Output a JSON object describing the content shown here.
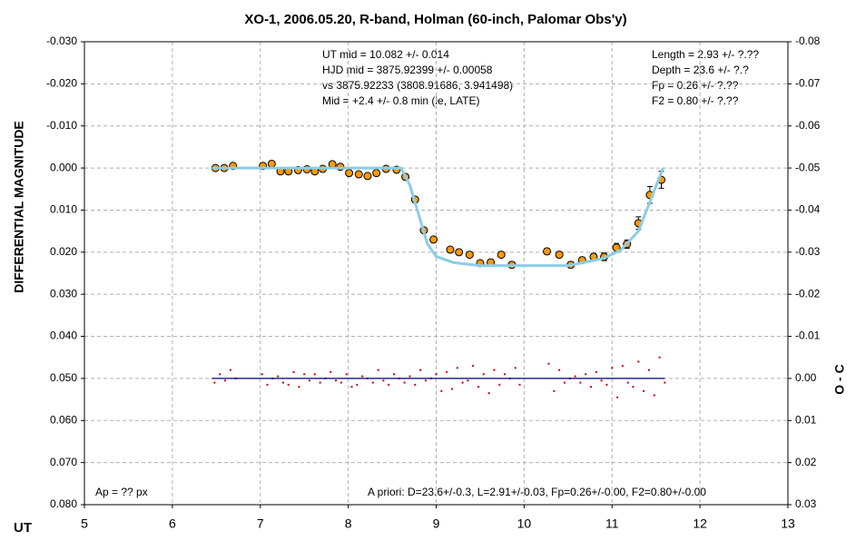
{
  "chart_data": {
    "type": "scatter",
    "title": "XO-1, 2006.05.20, R-band, Holman (60-inch, Palomar Obs'y)",
    "xlabel": "UT",
    "ylabel": "DIFFERENTIAL MAGNITUDE",
    "y2label": "O - C",
    "annotations": [
      "UT mid = 10.082 +/- 0.014",
      "HJD mid = 3875.92399 +/- 0.00058",
      "vs 3875.92233  (3808.91686, 3.941498)",
      "Mid = +2.4 +/- 0.8 min (ie, LATE)",
      "Length = 2.93 +/- ?.??",
      "Depth = 23.6 +/- ?.?",
      "Fp = 0.26 +/- ?.??",
      "F2 = 0.80 +/- ?.??",
      "Ap = ?? px",
      "A priori: D=23.6+/-0.3, L=2.91+/-0.03, Fp=0.26+/-0.00, F2=0.80+/-0.00"
    ],
    "xlim": [
      5,
      13
    ],
    "xticks": [
      5,
      6,
      7,
      8,
      9,
      10,
      11,
      12,
      13
    ],
    "ylim": [
      -0.03,
      0.08
    ],
    "y_inverted": true,
    "yticks": [
      {
        "value": -0.03,
        "label": "-0.030"
      },
      {
        "value": -0.02,
        "label": "-0.020"
      },
      {
        "value": -0.01,
        "label": "-0.010"
      },
      {
        "value": 0,
        "label": "0.000"
      },
      {
        "value": 0.01,
        "label": "0.010"
      },
      {
        "value": 0.02,
        "label": "0.020"
      },
      {
        "value": 0.03,
        "label": "0.030"
      },
      {
        "value": 0.04,
        "label": "0.040"
      },
      {
        "value": 0.05,
        "label": "0.050"
      },
      {
        "value": 0.06,
        "label": "0.060"
      },
      {
        "value": 0.07,
        "label": "0.070"
      },
      {
        "value": 0.08,
        "label": "0.080"
      }
    ],
    "y2lim": [
      -0.08,
      0.03
    ],
    "y2ticks": [
      {
        "value": -0.08,
        "label": "-0.08"
      },
      {
        "value": -0.07,
        "label": "-0.07"
      },
      {
        "value": -0.06,
        "label": "-0.06"
      },
      {
        "value": -0.05,
        "label": "-0.05"
      },
      {
        "value": -0.04,
        "label": "-0.04"
      },
      {
        "value": -0.03,
        "label": "-0.03"
      },
      {
        "value": -0.02,
        "label": "-0.02"
      },
      {
        "value": -0.01,
        "label": "-0.01"
      },
      {
        "value": 0,
        "label": "0.00"
      },
      {
        "value": 0.01,
        "label": "0.01"
      },
      {
        "value": 0.02,
        "label": "0.02"
      },
      {
        "value": 0.03,
        "label": "0.03"
      }
    ],
    "grid": true,
    "series": [
      {
        "mark": "errorbar",
        "color": "#ff9900",
        "x": [
          6.49,
          6.59,
          6.69,
          7.03,
          7.13,
          7.23,
          7.32,
          7.43,
          7.53,
          7.62,
          7.71,
          7.82,
          7.91,
          8.01,
          8.12,
          8.22,
          8.32,
          8.43,
          8.55,
          8.65,
          8.76,
          8.86,
          8.97,
          9.16,
          9.26,
          9.38,
          9.5,
          9.62,
          9.74,
          9.86,
          10.26,
          10.4,
          10.53,
          10.66,
          10.79,
          10.91,
          11.05,
          11.17,
          11.3,
          11.43,
          11.56
        ],
        "values": [
          0,
          0,
          -0.0005,
          -0.0005,
          -0.001,
          0.0008,
          0.0008,
          0.0005,
          0.0003,
          0.0008,
          0.0002,
          -0.0009,
          -0.0003,
          0.0012,
          0.0015,
          0.0019,
          0.0012,
          0.0002,
          0.0004,
          0.0021,
          0.0075,
          0.0148,
          0.017,
          0.0194,
          0.02,
          0.0206,
          0.0226,
          0.0224,
          0.0206,
          0.023,
          0.0198,
          0.0206,
          0.023,
          0.0219,
          0.0211,
          0.0211,
          0.0189,
          0.0181,
          0.0131,
          0.0064,
          0.0028
        ],
        "errors": [
          0.0004,
          0.0004,
          0.0004,
          0.0004,
          0.0004,
          0.0005,
          0.0005,
          0.0005,
          0.0005,
          0.0005,
          0.0005,
          0.0005,
          0.0005,
          0.0006,
          0.0006,
          0.0006,
          0.0006,
          0.0006,
          0.0006,
          0.0006,
          0.0006,
          0.0006,
          0.0006,
          0.0006,
          0.0006,
          0.0006,
          0.0006,
          0.0006,
          0.0006,
          0.0007,
          0.0007,
          0.0007,
          0.0007,
          0.0007,
          0.0008,
          0.0009,
          0.001,
          0.001,
          0.0015,
          0.002,
          0.002
        ]
      },
      {
        "mark": "line",
        "color": "#8ccde6",
        "x": [
          6.45,
          8.6,
          8.7,
          8.8,
          8.9,
          9.0,
          9.2,
          9.5,
          10.5,
          10.9,
          11.1,
          11.3,
          11.45,
          11.58
        ],
        "values": [
          0,
          0,
          0.004,
          0.011,
          0.018,
          0.021,
          0.0225,
          0.0232,
          0.0232,
          0.0215,
          0.0195,
          0.015,
          0.007,
          0
        ]
      },
      {
        "mark": "dot",
        "color": "#cc0000",
        "axis": "y2",
        "x": [
          6.48,
          6.54,
          6.6,
          6.66,
          6.72,
          7.02,
          7.08,
          7.14,
          7.2,
          7.26,
          7.32,
          7.38,
          7.44,
          7.5,
          7.56,
          7.62,
          7.68,
          7.74,
          7.8,
          7.86,
          7.92,
          7.98,
          8.04,
          8.1,
          8.16,
          8.22,
          8.28,
          8.34,
          8.4,
          8.46,
          8.52,
          8.58,
          8.64,
          8.7,
          8.76,
          8.82,
          8.88,
          8.94,
          9.0,
          9.06,
          9.12,
          9.18,
          9.24,
          9.3,
          9.36,
          9.42,
          9.48,
          9.54,
          9.6,
          9.66,
          9.72,
          9.78,
          9.84,
          9.9,
          9.95,
          10.28,
          10.34,
          10.4,
          10.46,
          10.52,
          10.58,
          10.64,
          10.7,
          10.76,
          10.82,
          10.88,
          10.94,
          11.0,
          11.06,
          11.12,
          11.18,
          11.24,
          11.3,
          11.36,
          11.42,
          11.48,
          11.54,
          11.6
        ],
        "values": [
          0.001,
          -0.001,
          0.0005,
          -0.002,
          0,
          -0.001,
          0.0015,
          0,
          -0.0005,
          0.001,
          0.0015,
          -0.0015,
          0.002,
          -0.001,
          0.0005,
          -0.001,
          0.001,
          0,
          -0.0015,
          0.0005,
          0.001,
          -0.001,
          0.002,
          0.0015,
          -0.0005,
          0,
          0.001,
          -0.002,
          0.0005,
          0.0015,
          -0.001,
          0,
          0.001,
          -0.0005,
          0.0015,
          -0.002,
          0.0005,
          0,
          -0.001,
          0.003,
          -0.0015,
          0.0025,
          -0.0025,
          0.001,
          0.0005,
          -0.003,
          0.002,
          -0.001,
          0.0035,
          -0.002,
          0.0015,
          -0.001,
          0,
          -0.0025,
          0.0015,
          -0.0035,
          0.003,
          -0.002,
          0.001,
          0,
          -0.0005,
          0.001,
          -0.001,
          0.002,
          -0.0015,
          0.0005,
          0.0015,
          -0.0025,
          0.0045,
          -0.003,
          0.001,
          0.002,
          -0.004,
          0.003,
          -0.002,
          0.004,
          -0.005,
          0.001
        ]
      },
      {
        "mark": "line",
        "color": "#000080",
        "axis": "y2",
        "x": [
          6.45,
          11.6
        ],
        "values": [
          0,
          0
        ]
      }
    ]
  }
}
